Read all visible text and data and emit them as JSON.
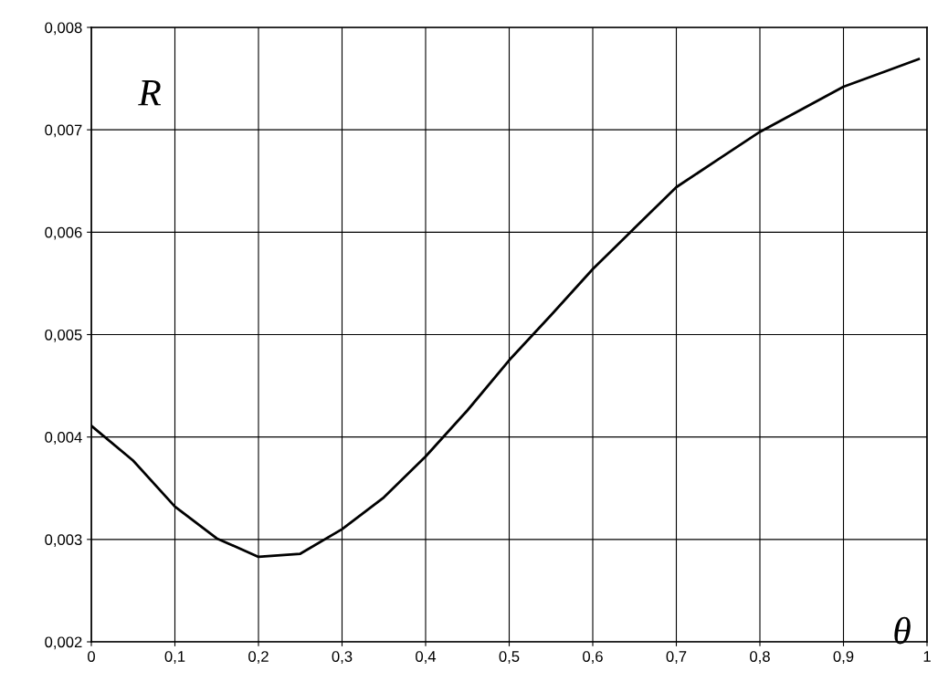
{
  "chart_data": {
    "type": "line",
    "xlabel": "θ",
    "ylabel": "R",
    "x": [
      0,
      0.05,
      0.1,
      0.15,
      0.2,
      0.25,
      0.3,
      0.35,
      0.4,
      0.45,
      0.5,
      0.55,
      0.6,
      0.65,
      0.7,
      0.75,
      0.8,
      0.85,
      0.9,
      0.95,
      0.99
    ],
    "series": [
      {
        "color": "#000000",
        "values": [
          0.00411,
          0.00377,
          0.00332,
          0.00301,
          0.00283,
          0.00286,
          0.0031,
          0.00341,
          0.00381,
          0.00426,
          0.00475,
          0.00519,
          0.00564,
          0.00604,
          0.00644,
          0.00671,
          0.00698,
          0.0072,
          0.00742,
          0.00757,
          0.00769
        ]
      }
    ],
    "xlim": [
      0,
      1
    ],
    "ylim": [
      0.002,
      0.008
    ],
    "xticks": [
      {
        "value": 0,
        "label": "0"
      },
      {
        "value": 0.1,
        "label": "0,1"
      },
      {
        "value": 0.2,
        "label": "0,2"
      },
      {
        "value": 0.3,
        "label": "0,3"
      },
      {
        "value": 0.4,
        "label": "0,4"
      },
      {
        "value": 0.5,
        "label": "0,5"
      },
      {
        "value": 0.6,
        "label": "0,6"
      },
      {
        "value": 0.7,
        "label": "0,7"
      },
      {
        "value": 0.8,
        "label": "0,8"
      },
      {
        "value": 0.9,
        "label": "0,9"
      },
      {
        "value": 1,
        "label": "1"
      }
    ],
    "yticks": [
      {
        "value": 0.002,
        "label": "0,002"
      },
      {
        "value": 0.003,
        "label": "0,003"
      },
      {
        "value": 0.004,
        "label": "0,004"
      },
      {
        "value": 0.005,
        "label": "0,005"
      },
      {
        "value": 0.006,
        "label": "0,006"
      },
      {
        "value": 0.007,
        "label": "0,007"
      },
      {
        "value": 0.008,
        "label": "0,008"
      }
    ],
    "grid": true,
    "marker": "none",
    "line_style": "solid"
  }
}
